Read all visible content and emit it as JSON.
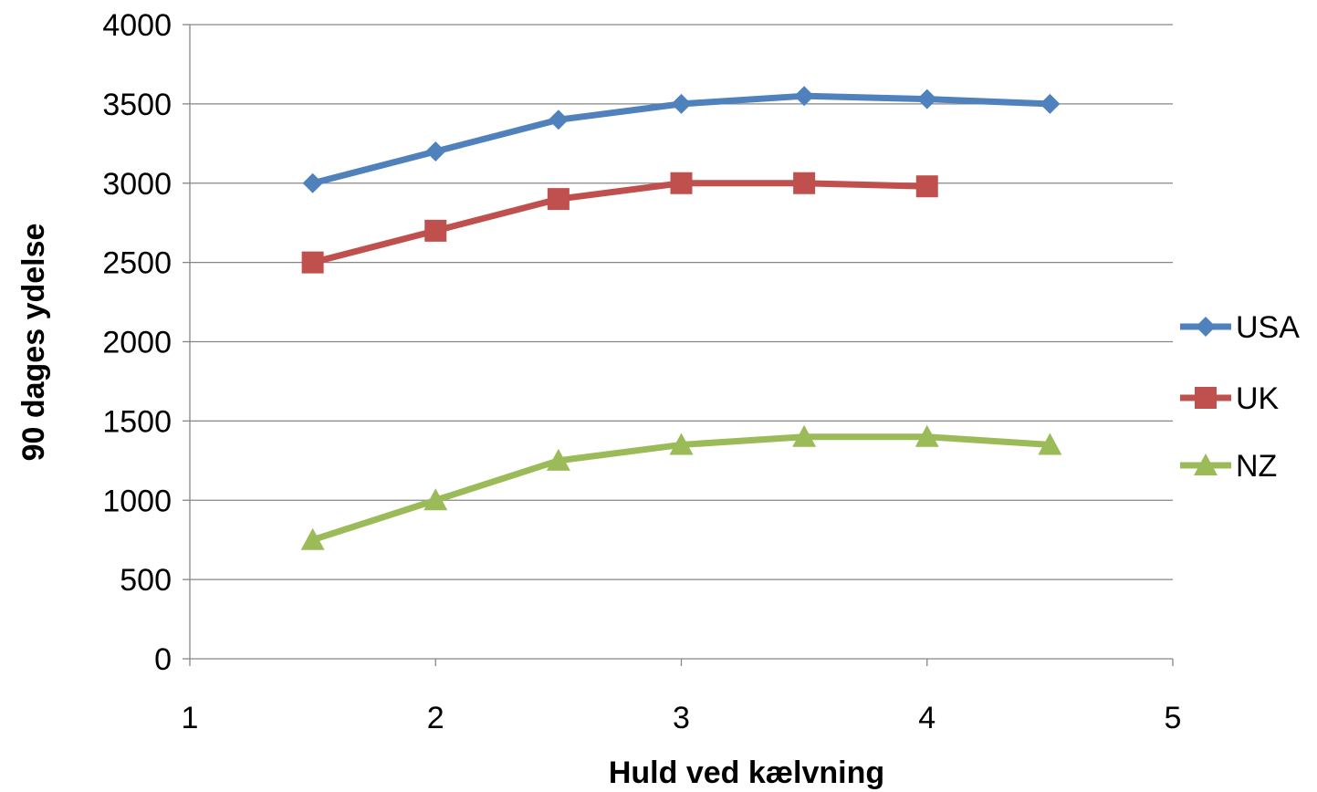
{
  "chart_data": {
    "type": "line",
    "title": "",
    "xlabel": "Huld ved kælvning",
    "ylabel": "90 dages ydelse",
    "xlim": [
      1,
      5
    ],
    "ylim": [
      0,
      4000
    ],
    "x_ticks": [
      "1",
      "2",
      "3",
      "4",
      "5"
    ],
    "y_ticks": [
      "0",
      "500",
      "1000",
      "1500",
      "2000",
      "2500",
      "3000",
      "3500",
      "4000"
    ],
    "grid": "horizontal",
    "legend_position": "right",
    "series": [
      {
        "name": "USA",
        "color": "#4f81bd",
        "marker": "diamond",
        "x": [
          1.5,
          2,
          2.5,
          3,
          3.5,
          4,
          4.5
        ],
        "y": [
          3000,
          3200,
          3400,
          3500,
          3550,
          3530,
          3500
        ]
      },
      {
        "name": "UK",
        "color": "#c0504d",
        "marker": "square",
        "x": [
          1.5,
          2,
          2.5,
          3,
          3.5,
          4
        ],
        "y": [
          2500,
          2700,
          2900,
          3000,
          3000,
          2980
        ]
      },
      {
        "name": "NZ",
        "color": "#9bbb59",
        "marker": "triangle",
        "x": [
          1.5,
          2,
          2.5,
          3,
          3.5,
          4,
          4.5
        ],
        "y": [
          750,
          1000,
          1250,
          1350,
          1400,
          1400,
          1350
        ]
      }
    ]
  }
}
